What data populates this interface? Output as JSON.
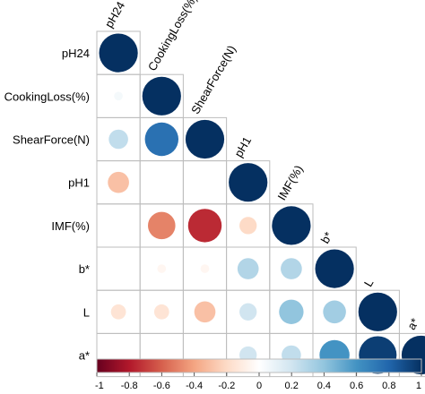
{
  "chart_data": {
    "type": "heatmap",
    "variables": [
      "pH24",
      "CookingLoss(%)",
      "ShearForce(N)",
      "pH1",
      "IMF(%)",
      "b*",
      "L",
      "a*"
    ],
    "matrix_lower": [
      [
        1
      ],
      [
        0.05,
        1
      ],
      [
        0.25,
        0.75,
        1
      ],
      [
        -0.3,
        0.0,
        0.0,
        1
      ],
      [
        0.0,
        -0.5,
        -0.75,
        -0.2,
        1
      ],
      [
        0.0,
        -0.05,
        -0.05,
        0.3,
        0.3,
        1
      ],
      [
        -0.15,
        -0.15,
        -0.3,
        0.2,
        0.4,
        0.35,
        1
      ],
      [
        0.0,
        0.0,
        0.0,
        0.2,
        0.25,
        0.6,
        0.95,
        1
      ]
    ],
    "colorbar": {
      "range": [
        -1,
        1
      ],
      "ticks": [
        "-1",
        "-0.8",
        "-0.6",
        "-0.4",
        "-0.2",
        "0",
        "0.2",
        "0.4",
        "0.6",
        "0.8",
        "1"
      ]
    },
    "colors": {
      "negative": "#67001f",
      "zero": "#ffffff",
      "positive": "#053061",
      "grid": "#bdbdbd"
    }
  }
}
